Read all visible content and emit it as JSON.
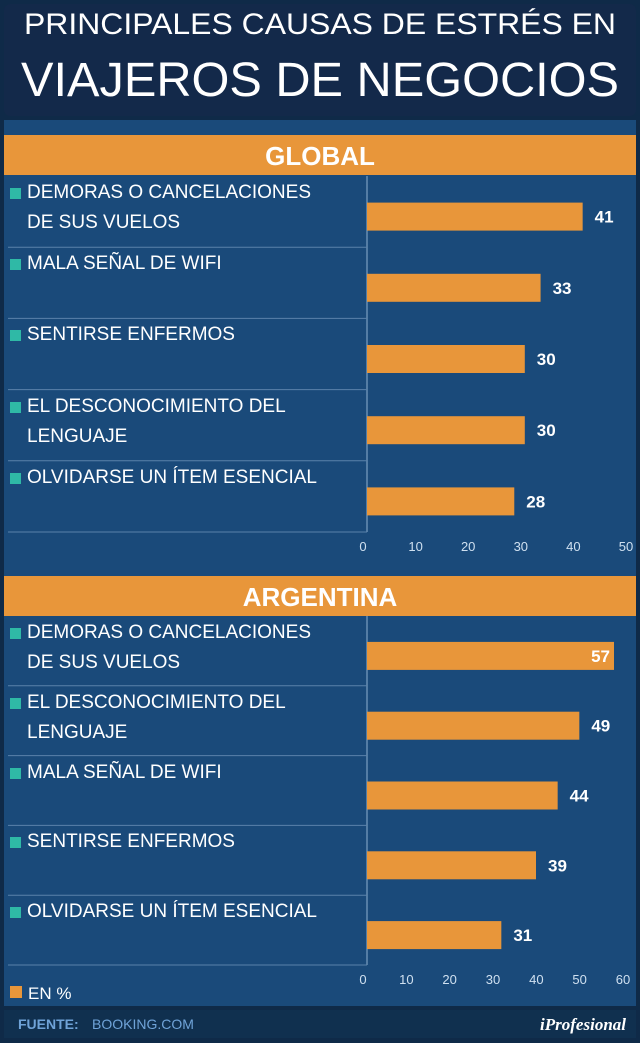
{
  "header": {
    "line1": "PRINCIPALES CAUSAS DE ESTRÉS EN",
    "line2": "VIAJEROS DE NEGOCIOS"
  },
  "chart_data": [
    {
      "type": "bar",
      "orientation": "horizontal",
      "title": "GLOBAL",
      "categories": [
        "DEMORAS O CANCELACIONES\nDE SUS VUELOS",
        "MALA SEÑAL DE WIFI",
        "SENTIRSE ENFERMOS",
        "EL DESCONOCIMIENTO DEL\nLENGUAJE",
        "OLVIDARSE UN ÍTEM ESENCIAL"
      ],
      "values": [
        41,
        33,
        30,
        30,
        28
      ],
      "color": "#e8963a",
      "xlim": [
        0,
        50
      ],
      "xticks": [
        0,
        10,
        20,
        30,
        40,
        50
      ]
    },
    {
      "type": "bar",
      "orientation": "horizontal",
      "title": "ARGENTINA",
      "categories": [
        "DEMORAS O CANCELACIONES\nDE SUS VUELOS",
        "EL DESCONOCIMIENTO DEL\nLENGUAJE",
        "MALA SEÑAL DE WIFI",
        "SENTIRSE ENFERMOS",
        "OLVIDARSE UN ÍTEM ESENCIAL"
      ],
      "values": [
        57,
        49,
        44,
        39,
        31
      ],
      "color": "#e8963a",
      "xlim": [
        0,
        60
      ],
      "xticks": [
        0,
        10,
        20,
        30,
        40,
        50,
        60
      ]
    }
  ],
  "legend": {
    "label": "EN %"
  },
  "footer": {
    "source_label": "FUENTE:",
    "source": "BOOKING.COM",
    "brand": "iProfesional"
  }
}
